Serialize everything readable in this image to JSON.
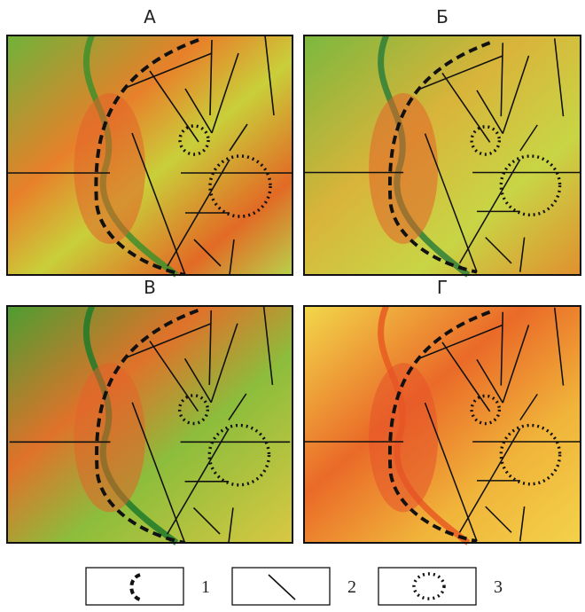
{
  "panels": [
    {
      "label": "А"
    },
    {
      "label": "Б"
    },
    {
      "label": "В"
    },
    {
      "label": "Г"
    }
  ],
  "legend": [
    {
      "label": "1"
    },
    {
      "label": "2"
    },
    {
      "label": "3"
    }
  ]
}
